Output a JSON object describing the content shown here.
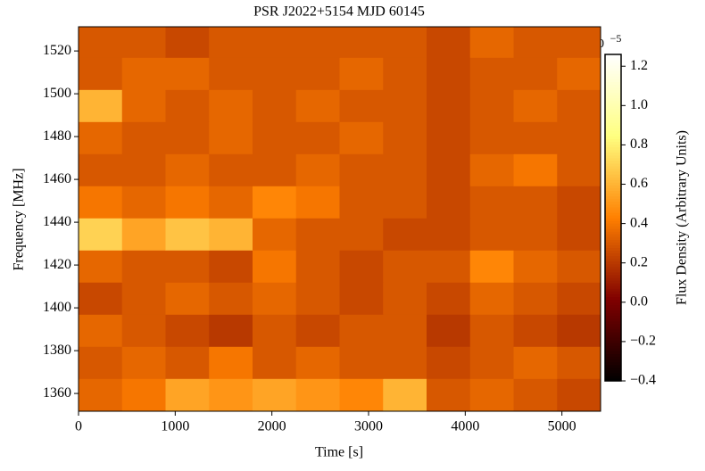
{
  "chart_data": {
    "type": "heatmap",
    "title": "PSR J2022+5154 MJD 60145",
    "x_label": "Time [s]",
    "y_label": "Frequency [MHz]",
    "colorbar_label": "Flux Density (Arbitrary Units)",
    "colorbar_offset": {
      "base": "10",
      "exponent": "−5"
    },
    "colormap": "afmhot",
    "x": [
      225,
      675,
      1125,
      1575,
      2025,
      2475,
      2925,
      3375,
      3825,
      4275,
      4725,
      5175
    ],
    "y": [
      1359.5,
      1374.5,
      1389.5,
      1404.5,
      1419.5,
      1434.5,
      1449.5,
      1464.5,
      1479.5,
      1494.5,
      1509.5,
      1524.5
    ],
    "z": [
      [
        0.35,
        0.4,
        0.55,
        0.5,
        0.55,
        0.5,
        0.45,
        0.6,
        0.3,
        0.35,
        0.3,
        0.25
      ],
      [
        0.3,
        0.35,
        0.3,
        0.4,
        0.3,
        0.35,
        0.3,
        0.3,
        0.25,
        0.3,
        0.35,
        0.3
      ],
      [
        0.35,
        0.3,
        0.25,
        0.2,
        0.3,
        0.25,
        0.3,
        0.3,
        0.2,
        0.3,
        0.25,
        0.2
      ],
      [
        0.25,
        0.3,
        0.35,
        0.3,
        0.35,
        0.3,
        0.25,
        0.3,
        0.25,
        0.35,
        0.3,
        0.25
      ],
      [
        0.35,
        0.3,
        0.3,
        0.25,
        0.4,
        0.3,
        0.25,
        0.3,
        0.3,
        0.45,
        0.35,
        0.3
      ],
      [
        0.7,
        0.55,
        0.65,
        0.6,
        0.35,
        0.3,
        0.3,
        0.25,
        0.25,
        0.3,
        0.3,
        0.25
      ],
      [
        0.4,
        0.35,
        0.4,
        0.35,
        0.45,
        0.4,
        0.3,
        0.3,
        0.25,
        0.3,
        0.3,
        0.25
      ],
      [
        0.3,
        0.3,
        0.35,
        0.3,
        0.3,
        0.35,
        0.3,
        0.3,
        0.25,
        0.35,
        0.4,
        0.3
      ],
      [
        0.35,
        0.3,
        0.3,
        0.35,
        0.3,
        0.3,
        0.35,
        0.3,
        0.25,
        0.3,
        0.3,
        0.3
      ],
      [
        0.6,
        0.35,
        0.3,
        0.35,
        0.3,
        0.35,
        0.3,
        0.3,
        0.25,
        0.3,
        0.35,
        0.3
      ],
      [
        0.3,
        0.35,
        0.35,
        0.3,
        0.3,
        0.3,
        0.35,
        0.3,
        0.25,
        0.3,
        0.3,
        0.35
      ],
      [
        0.3,
        0.3,
        0.25,
        0.3,
        0.3,
        0.3,
        0.3,
        0.3,
        0.25,
        0.35,
        0.3,
        0.3
      ]
    ],
    "xlim": [
      0,
      5400
    ],
    "xticks": [
      0,
      1000,
      2000,
      3000,
      4000,
      5000
    ],
    "ylim": [
      1351.7,
      1531.3
    ],
    "yticks": [
      1360,
      1380,
      1400,
      1420,
      1440,
      1460,
      1480,
      1500,
      1520
    ],
    "clim": [
      -0.4,
      1.26
    ],
    "cticks": [
      {
        "value": -0.4,
        "label": "−0.4"
      },
      {
        "value": -0.2,
        "label": "−0.2"
      },
      {
        "value": 0,
        "label": "0.0"
      },
      0.2,
      0.4,
      0.6,
      0.8,
      {
        "value": 1,
        "label": "1.0"
      },
      1.2
    ]
  }
}
